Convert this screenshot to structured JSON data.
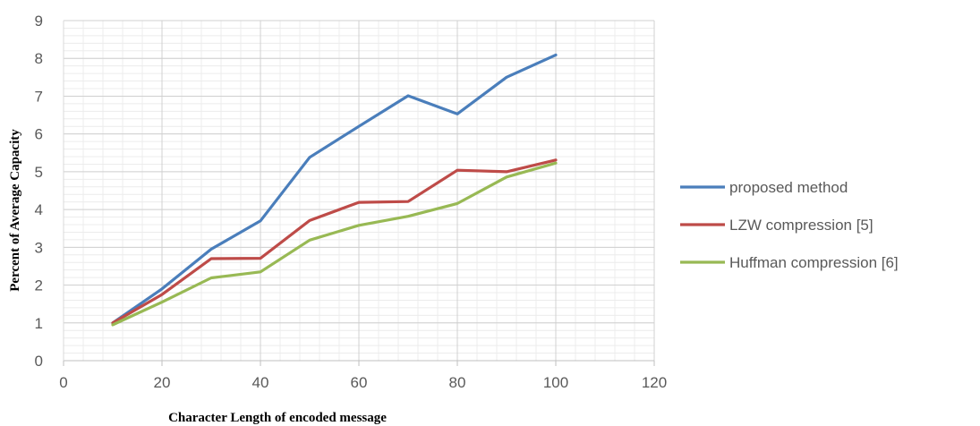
{
  "chart_data": {
    "type": "line",
    "title": "",
    "xlabel": "Character Length of encoded message",
    "ylabel": "Percent of  Average Capacity",
    "xlim": [
      0,
      120
    ],
    "ylim": [
      0,
      9
    ],
    "xticks": [
      "0",
      "20",
      "40",
      "60",
      "80",
      "100",
      "120"
    ],
    "yticks": [
      "0",
      "1",
      "2",
      "3",
      "4",
      "5",
      "6",
      "7",
      "8",
      "9"
    ],
    "grid": true,
    "legend_position": "right",
    "x": [
      10,
      20,
      30,
      40,
      50,
      60,
      70,
      80,
      90,
      100
    ],
    "series": [
      {
        "name": "proposed method",
        "color": "#4a7ebb",
        "values": [
          1.0,
          1.9,
          2.95,
          3.7,
          5.38,
          6.2,
          7.01,
          6.53,
          7.5,
          8.09
        ]
      },
      {
        "name": "LZW compression [5]",
        "color": "#be4b48",
        "values": [
          1.0,
          1.75,
          2.7,
          2.71,
          3.71,
          4.19,
          4.21,
          5.04,
          5.0,
          5.31
        ]
      },
      {
        "name": "Huffman compression [6]",
        "color": "#98b954",
        "values": [
          0.95,
          1.55,
          2.19,
          2.35,
          3.19,
          3.58,
          3.82,
          4.16,
          4.86,
          5.23
        ]
      }
    ]
  }
}
